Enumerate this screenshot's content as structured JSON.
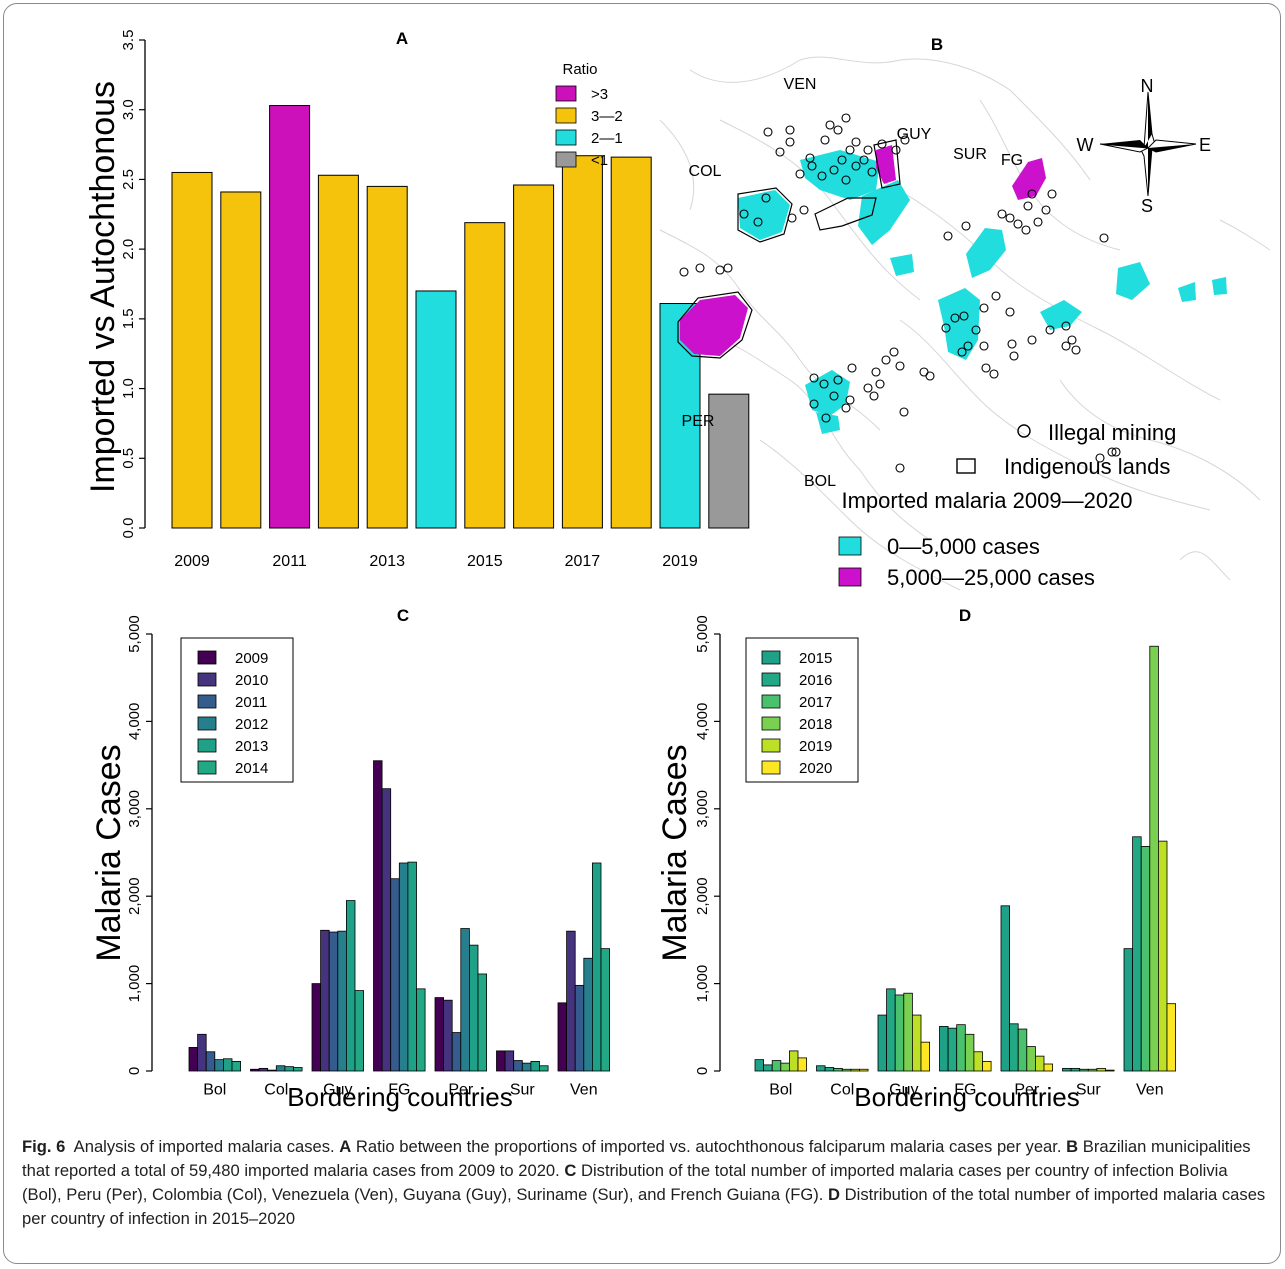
{
  "colors": {
    "ratio_gt3": "#cc11bb",
    "ratio_3_2": "#f5c20c",
    "ratio_2_1": "#22dddd",
    "ratio_lt1": "#999999",
    "map_low": "#22dddd",
    "map_high": "#cc11cc",
    "viridis_c": [
      "#440154",
      "#46337e",
      "#365c8d",
      "#277f8e",
      "#1fa187",
      "#22a884"
    ],
    "viridis_d": [
      "#1fa187",
      "#22a884",
      "#4ac16d",
      "#7ad151",
      "#bddf26",
      "#fde725"
    ]
  },
  "panel_a": {
    "label": "A",
    "legend_title": "Ratio",
    "legend_items": [
      {
        "label": ">3",
        "color": "#cc11bb"
      },
      {
        "label": "3—2",
        "color": "#f5c20c"
      },
      {
        "label": "2—1",
        "color": "#22dddd"
      },
      {
        "label": "<1",
        "color": "#999999"
      }
    ]
  },
  "panel_b": {
    "label": "B",
    "country_labels": [
      "VEN",
      "GUY",
      "SUR",
      "FG",
      "COL",
      "PER",
      "BOL"
    ],
    "compass": {
      "n": "N",
      "s": "S",
      "e": "E",
      "w": "W"
    },
    "legend_mining": "Illegal mining",
    "legend_indigenous": "Indigenous lands",
    "legend_title": "Imported malaria 2009—2020",
    "legend_low": "0—5,000 cases",
    "legend_high": "5,000—25,000 cases"
  },
  "panel_c": {
    "label": "C"
  },
  "panel_d": {
    "label": "D"
  },
  "chart_data": [
    {
      "type": "bar",
      "panel": "A",
      "title": "A",
      "xlabel": "",
      "ylabel": "Imported vs Autochthonous",
      "x": [
        2009,
        2010,
        2011,
        2012,
        2013,
        2014,
        2015,
        2016,
        2017,
        2018,
        2019,
        2020
      ],
      "values": [
        2.55,
        2.41,
        3.03,
        2.53,
        2.45,
        1.7,
        2.19,
        2.46,
        2.67,
        2.66,
        1.61,
        0.96
      ],
      "x_tick_labels": [
        "2009",
        "2011",
        "2013",
        "2015",
        "2017",
        "2019"
      ],
      "y_ticks": [
        "0.0",
        "0.5",
        "1.0",
        "1.5",
        "2.0",
        "2.5",
        "3.0",
        "3.5"
      ],
      "ylim": [
        0,
        3.5
      ],
      "legend_title": "Ratio",
      "legend": [
        ">3",
        "3—2",
        "2—1",
        "<1"
      ],
      "legend_position": "top-right"
    },
    {
      "type": "bar",
      "panel": "C",
      "title": "C",
      "xlabel": "Bordering countries",
      "ylabel": "Malaria Cases",
      "categories": [
        "Bol",
        "Col",
        "Guy",
        "FG",
        "Per",
        "Sur",
        "Ven"
      ],
      "y_ticks": [
        "0",
        "1,000",
        "2,000",
        "3,000",
        "4,000",
        "5,000"
      ],
      "ylim": [
        0,
        5000
      ],
      "legend_position": "top-left",
      "series": [
        {
          "name": "2009",
          "values": [
            270,
            20,
            1000,
            3550,
            840,
            230,
            780
          ]
        },
        {
          "name": "2010",
          "values": [
            420,
            30,
            1610,
            3230,
            810,
            230,
            1600
          ]
        },
        {
          "name": "2011",
          "values": [
            220,
            10,
            1590,
            2200,
            440,
            120,
            980
          ]
        },
        {
          "name": "2012",
          "values": [
            130,
            60,
            1600,
            2380,
            1630,
            90,
            1290
          ]
        },
        {
          "name": "2013",
          "values": [
            140,
            50,
            1950,
            2390,
            1440,
            110,
            2380
          ]
        },
        {
          "name": "2014",
          "values": [
            110,
            40,
            920,
            940,
            1110,
            60,
            1400
          ]
        }
      ]
    },
    {
      "type": "bar",
      "panel": "D",
      "title": "D",
      "xlabel": "Bordering countries",
      "ylabel": "Malaria Cases",
      "categories": [
        "Bol",
        "Col",
        "Guy",
        "FG",
        "Per",
        "Sur",
        "Ven"
      ],
      "y_ticks": [
        "0",
        "1,000",
        "2,000",
        "3,000",
        "4,000",
        "5,000"
      ],
      "ylim": [
        0,
        5000
      ],
      "legend_position": "top-left",
      "series": [
        {
          "name": "2015",
          "values": [
            130,
            60,
            640,
            510,
            1890,
            30,
            1400
          ]
        },
        {
          "name": "2016",
          "values": [
            70,
            40,
            940,
            490,
            540,
            30,
            2680
          ]
        },
        {
          "name": "2017",
          "values": [
            120,
            30,
            870,
            530,
            480,
            20,
            2570
          ]
        },
        {
          "name": "2018",
          "values": [
            90,
            20,
            890,
            420,
            280,
            20,
            4860
          ]
        },
        {
          "name": "2019",
          "values": [
            230,
            20,
            640,
            220,
            170,
            30,
            2630
          ]
        },
        {
          "name": "2020",
          "values": [
            150,
            20,
            330,
            110,
            80,
            10,
            770
          ]
        }
      ]
    }
  ],
  "caption": {
    "fig_label": "Fig. 6",
    "intro": "Analysis of imported malaria cases.",
    "a_label": "A",
    "a_text": "Ratio between the proportions of imported vs. autochthonous falciparum malaria cases per year.",
    "b_label": "B",
    "b_text": "Brazilian municipalities that reported a total of 59,480 imported malaria cases from 2009 to 2020.",
    "c_label": "C",
    "c_text": "Distribution of the total number of imported malaria cases per country of infection Bolivia (Bol), Peru (Per), Colombia (Col), Venezuela (Ven), Guyana (Guy), Suriname (Sur), and French Guiana (FG).",
    "d_label": "D",
    "d_text": "Distribution of the total number of imported malaria cases per country of infection in 2015–2020"
  }
}
